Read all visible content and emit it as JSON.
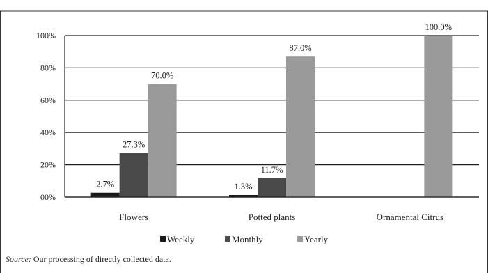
{
  "chart_data": {
    "type": "bar",
    "categories": [
      "Flowers",
      "Potted plants",
      "Ornamental Citrus"
    ],
    "series": [
      {
        "name": "Weekly",
        "values": [
          2.7,
          1.3,
          0
        ],
        "labels": [
          "2.7%",
          "1.3%",
          ""
        ],
        "color": "#1a1a1a"
      },
      {
        "name": "Monthly",
        "values": [
          27.3,
          11.7,
          0
        ],
        "labels": [
          "27.3%",
          "11.7%",
          ""
        ],
        "color": "#4a4a4a"
      },
      {
        "name": "Yearly",
        "values": [
          70.0,
          87.0,
          100.0
        ],
        "labels": [
          "70.0%",
          "87.0%",
          "100.0%"
        ],
        "color": "#9a9a9a"
      }
    ],
    "ylim": [
      0,
      100
    ],
    "yticks": [
      "00%",
      "20%",
      "40%",
      "60%",
      "80%",
      "100%"
    ],
    "grid": true,
    "legend": "bottom",
    "title": "",
    "xlabel": "",
    "ylabel": ""
  },
  "source": {
    "label": "Source:",
    "text": "Our processing of directly collected data."
  }
}
